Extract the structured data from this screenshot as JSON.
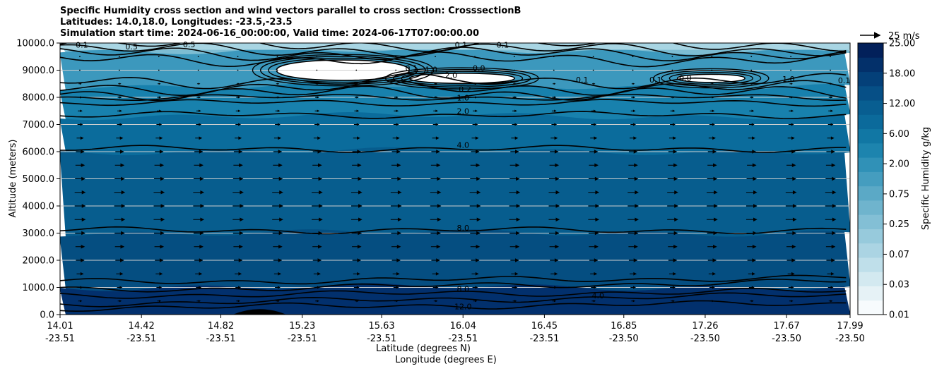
{
  "titles": [
    "Specific Humidity cross section and wind vectors parallel to cross section: CrosssectionB",
    "Latitudes: 14.0,18.0, Longitudes: -23.5,-23.5",
    "Simulation start time: 2024-06-16_00:00:00, Valid time: 2024-06-17T07:00:00.00"
  ],
  "chart_data": {
    "type": "contourf",
    "title": "Specific Humidity cross section and wind vectors parallel to cross section: CrosssectionB",
    "ylabel": "Altitude (meters)",
    "xlabel_lat": "Latitude (degrees N)",
    "xlabel_lon": "Longitude (degrees E)",
    "ylim": [
      0,
      10000
    ],
    "yticks": [
      "0.0",
      "1000.0",
      "2000.0",
      "3000.0",
      "4000.0",
      "5000.0",
      "6000.0",
      "7000.0",
      "8000.0",
      "9000.0",
      "10000.0"
    ],
    "ytick_values": [
      0,
      1000,
      2000,
      3000,
      4000,
      5000,
      6000,
      7000,
      8000,
      9000,
      10000
    ],
    "xticks_lat": [
      "14.01",
      "14.42",
      "14.82",
      "15.23",
      "15.63",
      "16.04",
      "16.45",
      "16.85",
      "17.26",
      "17.67",
      "17.99"
    ],
    "xticks_lon": [
      "-23.51",
      "-23.51",
      "-23.51",
      "-23.51",
      "-23.51",
      "-23.51",
      "-23.51",
      "-23.50",
      "-23.50",
      "-23.50",
      "-23.50"
    ],
    "xtick_lat_values": [
      14.01,
      14.42,
      14.82,
      15.23,
      15.63,
      16.04,
      16.45,
      16.85,
      17.26,
      17.67,
      17.99
    ],
    "xlim": [
      14.01,
      17.99
    ],
    "grid": "horizontal",
    "colorbar": {
      "label": "Specific Humidity g/kg",
      "levels": [
        0.01,
        0.02,
        0.03,
        0.05,
        0.07,
        0.1,
        0.25,
        0.5,
        0.75,
        1,
        2,
        4,
        6,
        8,
        12,
        15,
        18,
        20,
        25
      ],
      "tick_labels": [
        "0.01",
        "0.03",
        "0.07",
        "0.25",
        "0.75",
        "2.00",
        "6.00",
        "12.00",
        "18.00",
        "25.00"
      ],
      "colors": [
        "#f7fbfd",
        "#e6f2f6",
        "#d3e9f0",
        "#bfdfea",
        "#abd4e3",
        "#97cadc",
        "#83bfd5",
        "#6fb4cd",
        "#5ba9c6",
        "#459dbf",
        "#3091b7",
        "#1d84ae",
        "#1177a4",
        "#0b6a9b",
        "#085e91",
        "#064f86",
        "#044079",
        "#03306a",
        "#02205a"
      ]
    },
    "humidity_bands": [
      {
        "alt_range": [
          9700,
          10000
        ],
        "value": "0.1-0.5"
      },
      {
        "alt_range": [
          8400,
          9700
        ],
        "value": "0.5-2.0"
      },
      {
        "alt_range": [
          7300,
          8400
        ],
        "value": "1.0-2.0"
      },
      {
        "alt_range": [
          6000,
          7300
        ],
        "value": "2.0-4.0"
      },
      {
        "alt_range": [
          3000,
          6000
        ],
        "value": "4.0-8.0"
      },
      {
        "alt_range": [
          1000,
          3000
        ],
        "value": "8.0-12.0"
      },
      {
        "alt_range": [
          0,
          1000
        ],
        "value": "12.0-15.0"
      }
    ],
    "contour_labels": [
      {
        "text": "0.1",
        "lat": 14.12,
        "alt": 9930
      },
      {
        "text": "0.5",
        "lat": 14.37,
        "alt": 9870
      },
      {
        "text": "0.5",
        "lat": 14.66,
        "alt": 9950
      },
      {
        "text": "0.1",
        "lat": 16.03,
        "alt": 9930
      },
      {
        "text": "0.1",
        "lat": 16.24,
        "alt": 9930
      },
      {
        "text": "0.1",
        "lat": 15.78,
        "alt": 9080
      },
      {
        "text": "1.0",
        "lat": 15.88,
        "alt": 9030
      },
      {
        "text": "0.0",
        "lat": 16.12,
        "alt": 9080
      },
      {
        "text": "2.0",
        "lat": 15.98,
        "alt": 8820
      },
      {
        "text": "0.2",
        "lat": 16.05,
        "alt": 8300
      },
      {
        "text": "1.0",
        "lat": 16.04,
        "alt": 7990
      },
      {
        "text": "2.0",
        "lat": 16.04,
        "alt": 7490
      },
      {
        "text": "0.1",
        "lat": 16.64,
        "alt": 8650
      },
      {
        "text": "0.1",
        "lat": 17.01,
        "alt": 8650
      },
      {
        "text": "0.0",
        "lat": 17.16,
        "alt": 8720
      },
      {
        "text": "1.0",
        "lat": 17.68,
        "alt": 8680
      },
      {
        "text": "0.1",
        "lat": 17.96,
        "alt": 8620
      },
      {
        "text": "4.0",
        "lat": 16.04,
        "alt": 6250
      },
      {
        "text": "8.0",
        "lat": 16.04,
        "alt": 3200
      },
      {
        "text": "8.0",
        "lat": 16.04,
        "alt": 950
      },
      {
        "text": "4.0",
        "lat": 16.72,
        "alt": 700
      },
      {
        "text": "12.0",
        "lat": 16.04,
        "alt": 300
      }
    ],
    "dry_patches": [
      {
        "lat_range": [
          15.1,
          15.77
        ],
        "alt_range": [
          8500,
          9500
        ]
      },
      {
        "lat_range": [
          15.77,
          16.3
        ],
        "alt_range": [
          8450,
          8950
        ]
      },
      {
        "lat_range": [
          17.12,
          17.46
        ],
        "alt_range": [
          8500,
          8900
        ]
      }
    ],
    "terrain": {
      "lat_range": [
        14.88,
        15.15
      ],
      "max_alt": 200
    },
    "wind_vectors": {
      "reference": "25 m/s",
      "rows_alt": [
        9500,
        9000,
        8500,
        8000,
        7500,
        7000,
        6500,
        6000,
        5500,
        5000,
        4500,
        4000,
        3500,
        3000,
        2500,
        2000,
        1500,
        1000,
        500
      ],
      "rows_speed_ms": [
        2,
        2,
        3,
        4,
        5,
        6,
        8,
        10,
        11,
        12,
        13,
        13,
        13,
        12,
        11,
        10,
        8,
        6,
        4
      ],
      "columns": 20,
      "direction": "east-north along cross section (rightward)"
    }
  }
}
